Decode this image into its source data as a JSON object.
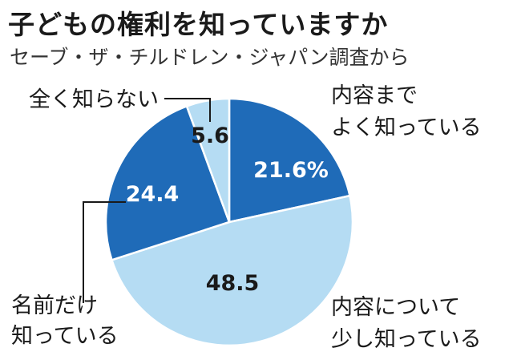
{
  "header": {
    "title": "子どもの権利を知っていますか",
    "subtitle": "セーブ・ザ・チルドレン・ジャパン調査から"
  },
  "chart_data": {
    "type": "pie",
    "title": "子どもの権利を知っていますか",
    "subtitle": "セーブ・ザ・チルドレン・ジャパン調査から",
    "unit": "%",
    "slices": [
      {
        "label_lines": [
          "内容まで",
          "よく知っている"
        ],
        "value": 21.6,
        "value_text": "21.6%",
        "color": "#1f6bb8",
        "value_color": "#ffffff"
      },
      {
        "label_lines": [
          "内容について",
          "少し知っている"
        ],
        "value": 48.5,
        "value_text": "48.5",
        "color": "#b5dcf3",
        "value_color": "#1a1a1a"
      },
      {
        "label_lines": [
          "名前だけ",
          "知っている"
        ],
        "value": 24.4,
        "value_text": "24.4",
        "color": "#1f6bb8",
        "value_color": "#ffffff"
      },
      {
        "label_lines": [
          "全く知らない"
        ],
        "value": 5.6,
        "value_text": "5.6",
        "color": "#b5dcf3",
        "value_color": "#1a1a1a"
      }
    ]
  }
}
